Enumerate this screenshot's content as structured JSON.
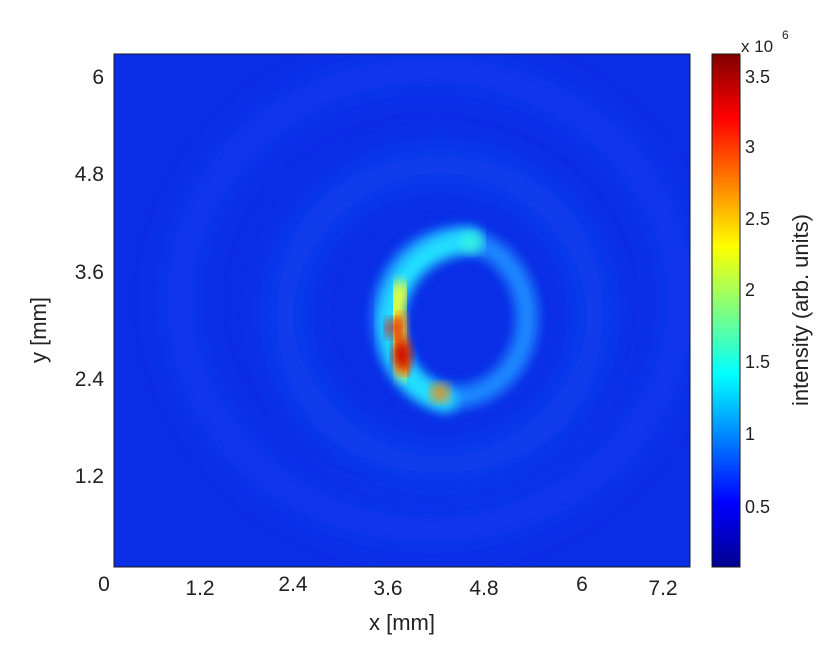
{
  "chart_data": {
    "type": "heatmap",
    "title": "",
    "xlabel": "x [mm]",
    "ylabel": "y [mm]",
    "xlim": [
      0,
      7.4
    ],
    "ylim": [
      0,
      6.3
    ],
    "x_ticks": [
      "0",
      "1.2",
      "2.4",
      "3.6",
      "4.8",
      "6",
      "7.2"
    ],
    "x_tick_values": [
      0,
      1.2,
      2.4,
      3.6,
      4.8,
      6,
      7.2
    ],
    "y_ticks": [
      "1.2",
      "2.4",
      "3.6",
      "4.8",
      "6"
    ],
    "y_tick_values": [
      1.2,
      2.4,
      3.6,
      4.8,
      6
    ],
    "colormap": "jet",
    "colorbar": {
      "label": "intensity (arb. units)",
      "multiplier_base": "x 10",
      "multiplier_exponent": "6",
      "range": [
        0.08,
        3.62
      ],
      "ticks": [
        "0.5",
        "1",
        "1.5",
        "2",
        "2.5",
        "3",
        "3.5"
      ],
      "tick_values": [
        0.5,
        1,
        1.5,
        2,
        2.5,
        3,
        3.5
      ]
    },
    "background_level": 0.35,
    "ring": {
      "center_mm": [
        4.3,
        3.05
      ],
      "radius_mm": 0.93,
      "peak_intensity": 3.6,
      "bright_segment": "left side, from upper-left (x≈3.9, y≈3.6) down to lower-right (x≈4.3, y≈2.2)",
      "hot_spots": [
        {
          "x": 3.75,
          "y": 2.9,
          "value": 3.6
        },
        {
          "x": 3.8,
          "y": 2.55,
          "value": 3.5
        },
        {
          "x": 3.8,
          "y": 3.3,
          "value": 2.6
        },
        {
          "x": 4.3,
          "y": 2.2,
          "value": 2.9
        },
        {
          "x": 4.7,
          "y": 3.9,
          "value": 1.3
        }
      ]
    },
    "grid": false
  }
}
